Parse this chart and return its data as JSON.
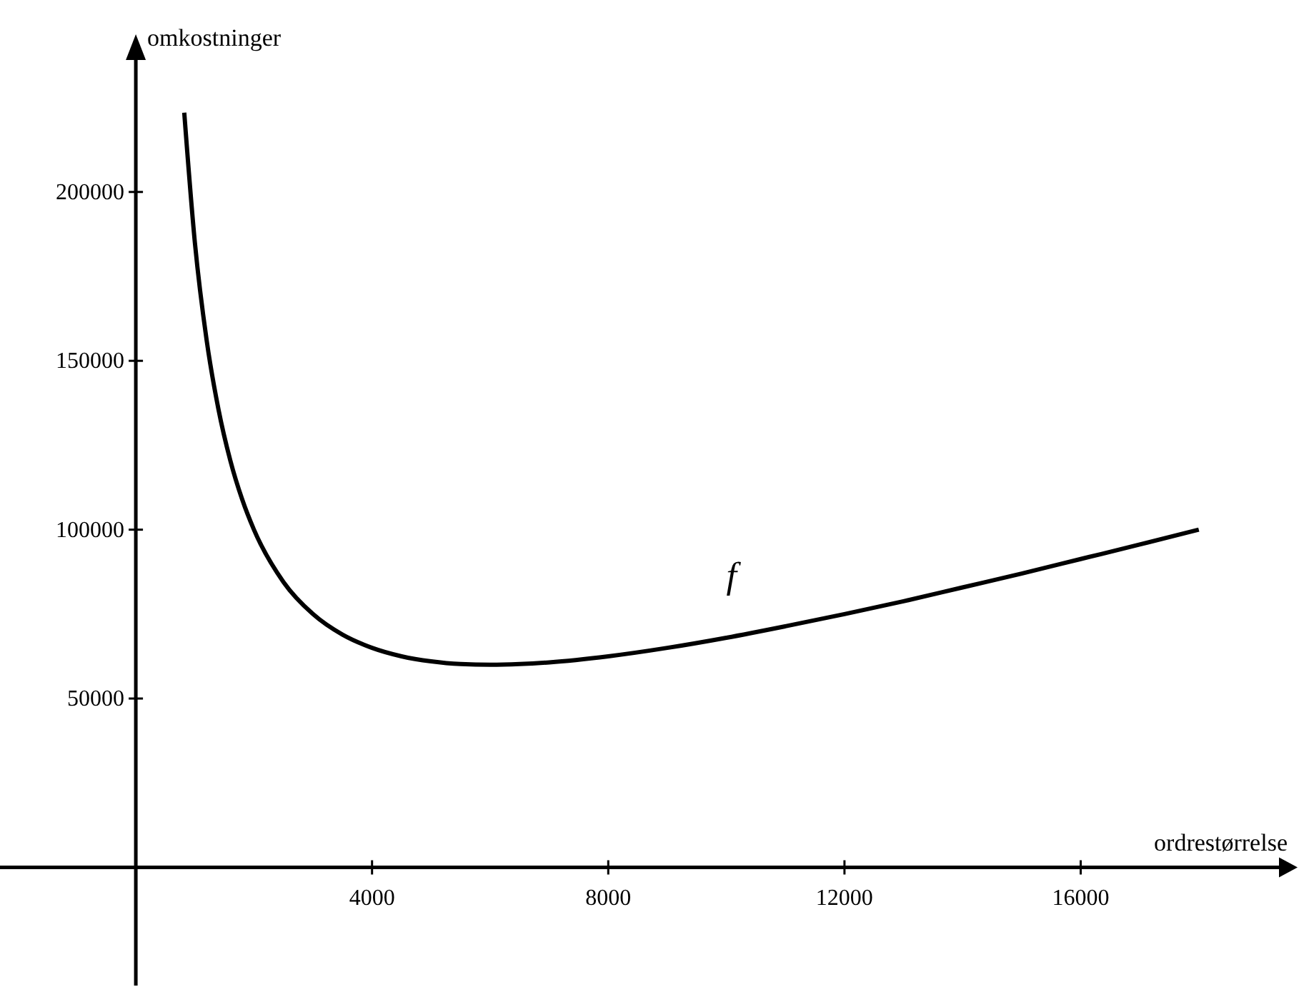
{
  "chart_data": {
    "type": "line",
    "xlabel": "ordrestørrelse",
    "ylabel": "omkostninger",
    "xlim": [
      -2300,
      19600
    ],
    "ylim": [
      -35000,
      245000
    ],
    "xticks": [
      4000,
      8000,
      12000,
      16000
    ],
    "yticks": [
      50000,
      100000,
      150000,
      200000
    ],
    "series": [
      {
        "name": "f",
        "color": "#000000",
        "x": [
          820,
          1000,
          1200,
          1400,
          1600,
          1800,
          2000,
          2500,
          3000,
          3500,
          4000,
          4500,
          5000,
          5500,
          6000,
          6500,
          7000,
          8000,
          9000,
          10000,
          11000,
          12000,
          13000,
          14000,
          15000,
          16000,
          17000,
          18000
        ],
        "values": [
          223500,
          185000,
          156000,
          135600,
          120500,
          109000,
          100000,
          84500,
          75000,
          68900,
          65000,
          62500,
          61000,
          60200,
          60000,
          60200,
          60700,
          62500,
          65000,
          68000,
          71400,
          75000,
          78800,
          82900,
          87000,
          91300,
          95600,
          100000
        ]
      }
    ]
  }
}
